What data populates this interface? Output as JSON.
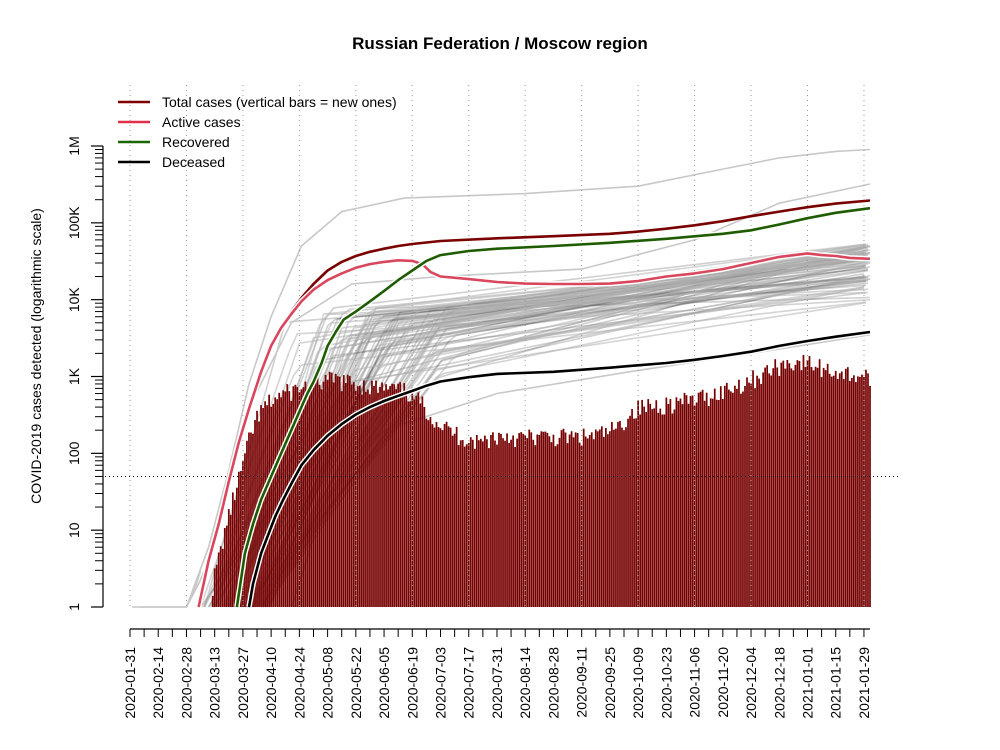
{
  "chart_data": {
    "type": "line",
    "title": "Russian Federation / Moscow region",
    "ylabel": "COVID-2019 cases detected (logarithmic scale)",
    "xlabel": "",
    "y_scale": "log",
    "ylim": [
      1,
      1000000
    ],
    "xlim": [
      "2020-01-31",
      "2021-02-01"
    ],
    "y_ticks": [
      {
        "value": 1,
        "label": "1"
      },
      {
        "value": 10,
        "label": "10"
      },
      {
        "value": 100,
        "label": "100"
      },
      {
        "value": 1000,
        "label": "1K"
      },
      {
        "value": 10000,
        "label": "10K"
      },
      {
        "value": 100000,
        "label": "100K"
      },
      {
        "value": 1000000,
        "label": "1M"
      }
    ],
    "x_tick_labels": [
      "2020-01-31",
      "2020-02-14",
      "2020-02-28",
      "2020-03-13",
      "2020-03-27",
      "2020-04-10",
      "2020-04-24",
      "2020-05-08",
      "2020-05-22",
      "2020-06-05",
      "2020-06-19",
      "2020-07-03",
      "2020-07-17",
      "2020-07-31",
      "2020-08-14",
      "2020-08-28",
      "2020-09-11",
      "2020-09-25",
      "2020-10-09",
      "2020-10-23",
      "2020-11-06",
      "2020-11-20",
      "2020-12-04",
      "2020-12-18",
      "2021-01-01",
      "2021-01-15",
      "2021-01-29"
    ],
    "reference_line": 50,
    "legend_position": "top-left",
    "legend": [
      {
        "label": "Total cases (vertical bars = new ones)",
        "color": "#800000"
      },
      {
        "label": "Active cases",
        "color": "#e0304a"
      },
      {
        "label": "Recovered",
        "color": "#1a6600"
      },
      {
        "label": "Deceased",
        "color": "#000000"
      }
    ],
    "series": [
      {
        "name": "Total cases (vertical bars = new ones)",
        "color": "#7a0000",
        "points": [
          [
            "2020-03-05",
            1
          ],
          [
            "2020-03-10",
            4
          ],
          [
            "2020-03-15",
            12
          ],
          [
            "2020-03-20",
            45
          ],
          [
            "2020-03-25",
            150
          ],
          [
            "2020-03-30",
            400
          ],
          [
            "2020-04-05",
            1200
          ],
          [
            "2020-04-10",
            2600
          ],
          [
            "2020-04-15",
            4500
          ],
          [
            "2020-04-20",
            7000
          ],
          [
            "2020-04-25",
            10500
          ],
          [
            "2020-05-01",
            16000
          ],
          [
            "2020-05-08",
            24000
          ],
          [
            "2020-05-15",
            31000
          ],
          [
            "2020-05-22",
            37000
          ],
          [
            "2020-05-29",
            42000
          ],
          [
            "2020-06-05",
            46000
          ],
          [
            "2020-06-12",
            50000
          ],
          [
            "2020-06-19",
            53000
          ],
          [
            "2020-07-03",
            58000
          ],
          [
            "2020-07-31",
            63000
          ],
          [
            "2020-08-28",
            67000
          ],
          [
            "2020-09-25",
            72000
          ],
          [
            "2020-10-09",
            77000
          ],
          [
            "2020-10-23",
            84000
          ],
          [
            "2020-11-06",
            93000
          ],
          [
            "2020-11-20",
            105000
          ],
          [
            "2020-12-04",
            122000
          ],
          [
            "2020-12-18",
            140000
          ],
          [
            "2021-01-01",
            160000
          ],
          [
            "2021-01-15",
            178000
          ],
          [
            "2021-02-01",
            195000
          ]
        ]
      },
      {
        "name": "Active cases",
        "color": "#d9475e",
        "points": [
          [
            "2020-03-05",
            1
          ],
          [
            "2020-03-10",
            4
          ],
          [
            "2020-03-15",
            12
          ],
          [
            "2020-03-20",
            43
          ],
          [
            "2020-03-25",
            140
          ],
          [
            "2020-03-30",
            380
          ],
          [
            "2020-04-05",
            1150
          ],
          [
            "2020-04-10",
            2500
          ],
          [
            "2020-04-15",
            4300
          ],
          [
            "2020-04-20",
            6500
          ],
          [
            "2020-04-25",
            9500
          ],
          [
            "2020-05-01",
            13500
          ],
          [
            "2020-05-08",
            18000
          ],
          [
            "2020-05-15",
            22000
          ],
          [
            "2020-05-22",
            26000
          ],
          [
            "2020-05-29",
            29000
          ],
          [
            "2020-06-05",
            31000
          ],
          [
            "2020-06-12",
            32500
          ],
          [
            "2020-06-19",
            32000
          ],
          [
            "2020-06-24",
            29000
          ],
          [
            "2020-06-28",
            23000
          ],
          [
            "2020-07-03",
            20000
          ],
          [
            "2020-07-17",
            18500
          ],
          [
            "2020-07-31",
            17000
          ],
          [
            "2020-08-14",
            16200
          ],
          [
            "2020-08-28",
            16000
          ],
          [
            "2020-09-11",
            16000
          ],
          [
            "2020-09-25",
            16200
          ],
          [
            "2020-10-09",
            17500
          ],
          [
            "2020-10-23",
            20000
          ],
          [
            "2020-11-06",
            22000
          ],
          [
            "2020-11-20",
            25000
          ],
          [
            "2020-12-04",
            30000
          ],
          [
            "2020-12-18",
            36000
          ],
          [
            "2021-01-01",
            40000
          ],
          [
            "2021-01-08",
            38000
          ],
          [
            "2021-01-15",
            37000
          ],
          [
            "2021-01-22",
            35000
          ],
          [
            "2021-02-01",
            34000
          ]
        ]
      },
      {
        "name": "Recovered",
        "color": "#1f5c00",
        "points": [
          [
            "2020-03-24",
            1
          ],
          [
            "2020-03-28",
            5
          ],
          [
            "2020-04-01",
            12
          ],
          [
            "2020-04-05",
            25
          ],
          [
            "2020-04-10",
            50
          ],
          [
            "2020-04-15",
            100
          ],
          [
            "2020-04-20",
            200
          ],
          [
            "2020-04-25",
            400
          ],
          [
            "2020-04-28",
            600
          ],
          [
            "2020-05-01",
            850
          ],
          [
            "2020-05-05",
            1500
          ],
          [
            "2020-05-08",
            2500
          ],
          [
            "2020-05-12",
            3800
          ],
          [
            "2020-05-16",
            5500
          ],
          [
            "2020-05-22",
            7000
          ],
          [
            "2020-05-29",
            9500
          ],
          [
            "2020-06-05",
            13000
          ],
          [
            "2020-06-12",
            18000
          ],
          [
            "2020-06-19",
            24000
          ],
          [
            "2020-06-26",
            32000
          ],
          [
            "2020-07-03",
            38000
          ],
          [
            "2020-07-17",
            43000
          ],
          [
            "2020-07-31",
            46000
          ],
          [
            "2020-08-28",
            50000
          ],
          [
            "2020-09-25",
            55000
          ],
          [
            "2020-10-23",
            62000
          ],
          [
            "2020-11-20",
            72000
          ],
          [
            "2020-12-04",
            80000
          ],
          [
            "2020-12-18",
            95000
          ],
          [
            "2021-01-01",
            115000
          ],
          [
            "2021-01-15",
            135000
          ],
          [
            "2021-02-01",
            155000
          ]
        ]
      },
      {
        "name": "Deceased",
        "color": "#000000",
        "points": [
          [
            "2020-03-30",
            1
          ],
          [
            "2020-04-01",
            2
          ],
          [
            "2020-04-05",
            5
          ],
          [
            "2020-04-08",
            8
          ],
          [
            "2020-04-12",
            15
          ],
          [
            "2020-04-16",
            25
          ],
          [
            "2020-04-20",
            40
          ],
          [
            "2020-04-25",
            70
          ],
          [
            "2020-05-01",
            110
          ],
          [
            "2020-05-08",
            170
          ],
          [
            "2020-05-15",
            240
          ],
          [
            "2020-05-22",
            320
          ],
          [
            "2020-05-29",
            400
          ],
          [
            "2020-06-05",
            480
          ],
          [
            "2020-06-12",
            560
          ],
          [
            "2020-06-19",
            650
          ],
          [
            "2020-06-26",
            760
          ],
          [
            "2020-07-03",
            860
          ],
          [
            "2020-07-17",
            980
          ],
          [
            "2020-07-31",
            1080
          ],
          [
            "2020-08-28",
            1150
          ],
          [
            "2020-09-25",
            1300
          ],
          [
            "2020-10-09",
            1400
          ],
          [
            "2020-10-23",
            1500
          ],
          [
            "2020-11-06",
            1650
          ],
          [
            "2020-11-20",
            1850
          ],
          [
            "2020-12-04",
            2100
          ],
          [
            "2020-12-18",
            2500
          ],
          [
            "2021-01-01",
            2900
          ],
          [
            "2021-01-15",
            3300
          ],
          [
            "2021-02-01",
            3800
          ]
        ]
      }
    ],
    "new_cases_profile": [
      [
        "2020-03-12",
        2
      ],
      [
        "2020-03-18",
        10
      ],
      [
        "2020-03-22",
        25
      ],
      [
        "2020-03-26",
        60
      ],
      [
        "2020-03-30",
        150
      ],
      [
        "2020-04-03",
        300
      ],
      [
        "2020-04-08",
        450
      ],
      [
        "2020-04-15",
        600
      ],
      [
        "2020-04-22",
        700
      ],
      [
        "2020-04-29",
        780
      ],
      [
        "2020-05-06",
        900
      ],
      [
        "2020-05-12",
        950
      ],
      [
        "2020-05-20",
        850
      ],
      [
        "2020-05-27",
        800
      ],
      [
        "2020-06-03",
        720
      ],
      [
        "2020-06-10",
        700
      ],
      [
        "2020-06-17",
        650
      ],
      [
        "2020-06-24",
        450
      ],
      [
        "2020-07-01",
        270
      ],
      [
        "2020-07-08",
        200
      ],
      [
        "2020-07-15",
        165
      ],
      [
        "2020-07-22",
        145
      ],
      [
        "2020-07-29",
        170
      ],
      [
        "2020-08-05",
        175
      ],
      [
        "2020-08-12",
        165
      ],
      [
        "2020-08-19",
        170
      ],
      [
        "2020-08-26",
        165
      ],
      [
        "2020-09-02",
        170
      ],
      [
        "2020-09-09",
        165
      ],
      [
        "2020-09-16",
        175
      ],
      [
        "2020-09-23",
        190
      ],
      [
        "2020-09-30",
        230
      ],
      [
        "2020-10-04",
        320
      ],
      [
        "2020-10-09",
        400
      ],
      [
        "2020-10-16",
        430
      ],
      [
        "2020-10-23",
        460
      ],
      [
        "2020-10-30",
        480
      ],
      [
        "2020-11-06",
        520
      ],
      [
        "2020-11-13",
        580
      ],
      [
        "2020-11-20",
        680
      ],
      [
        "2020-11-27",
        800
      ],
      [
        "2020-12-04",
        950
      ],
      [
        "2020-12-11",
        1150
      ],
      [
        "2020-12-18",
        1450
      ],
      [
        "2020-12-25",
        1600
      ],
      [
        "2021-01-01",
        1550
      ],
      [
        "2021-01-08",
        1350
      ],
      [
        "2021-01-15",
        1200
      ],
      [
        "2021-01-22",
        1100
      ],
      [
        "2021-01-29",
        1050
      ],
      [
        "2021-02-01",
        1050
      ]
    ],
    "other_regions_note_count": 85
  },
  "colors": {
    "bars": "#760000",
    "background_lines": "#b0b0b0",
    "dense_lines": "#555555",
    "grid": "#999999"
  }
}
